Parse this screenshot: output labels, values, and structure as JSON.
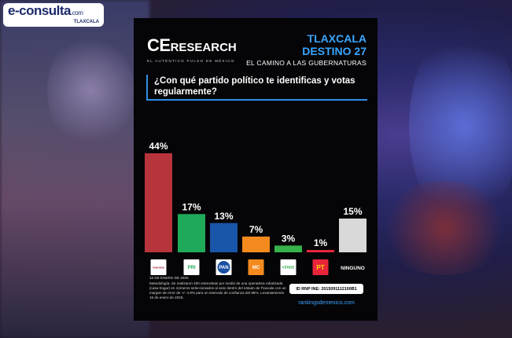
{
  "site": {
    "name": "e-consulta",
    "tld": ".com",
    "region": "TLAXCALA"
  },
  "brand": {
    "logo_ce": "CE",
    "logo_research": "RESEARCH",
    "tagline": "EL AUTÉNTICO PULSO DE MÉXICO"
  },
  "header": {
    "state": "TLAXCALA",
    "series": "DESTINO 27",
    "subtitle": "EL CAMINO A LAS GUBERNATURAS"
  },
  "question": "¿Con qué partido político te identificas y votas regularmente?",
  "chart_data": {
    "type": "bar",
    "categories": [
      "morena",
      "PRI",
      "PAN",
      "MC",
      "VERDE",
      "PT",
      "NINGUNO"
    ],
    "values": [
      44,
      17,
      13,
      7,
      3,
      1,
      15
    ],
    "value_labels": [
      "44%",
      "17%",
      "13%",
      "7%",
      "3%",
      "1%",
      "15%"
    ],
    "colors": [
      "#b7343c",
      "#1faa59",
      "#1955a8",
      "#f58a1f",
      "#35b34a",
      "#e8253b",
      "#d9d9d9"
    ],
    "ylim": [
      0,
      44
    ],
    "grid": false,
    "legend": "none"
  },
  "footer": {
    "date": "16 DE ENERO DE 2025",
    "methodology": "Metodología: Se realizaron 400 entrevistas por medio de una operadora robotizada (casa-hogar) en números seleccionados al azar dentro del estado de Tlaxcala con un margen de error de +/- 4.9% para un intervalo de confianza del 95%. Levantamiento 15 de enero de 2025.",
    "ine_id": "ID RNP INE: 2015091112100B1",
    "website": "rankingsdemexico.com"
  }
}
